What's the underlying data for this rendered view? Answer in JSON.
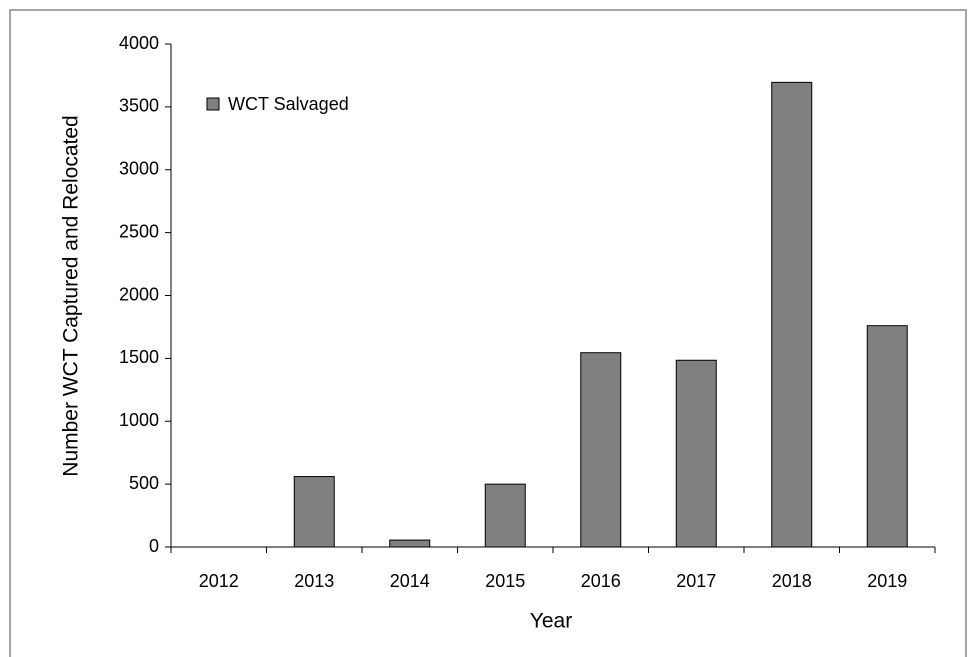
{
  "chart_data": {
    "type": "bar",
    "categories": [
      "2012",
      "2013",
      "2014",
      "2015",
      "2016",
      "2017",
      "2018",
      "2019"
    ],
    "series": [
      {
        "name": "WCT Salvaged",
        "color": "#808080",
        "values": [
          0,
          560,
          55,
          500,
          1545,
          1485,
          3695,
          1760
        ]
      }
    ],
    "ylim": [
      0,
      4000
    ],
    "yticks": [
      0,
      500,
      1000,
      1500,
      2000,
      2500,
      3000,
      3500,
      4000
    ],
    "x_label": "Year",
    "y_label": "Number  WCT Captured and Relocated",
    "legend": "upper left",
    "grid": false
  }
}
